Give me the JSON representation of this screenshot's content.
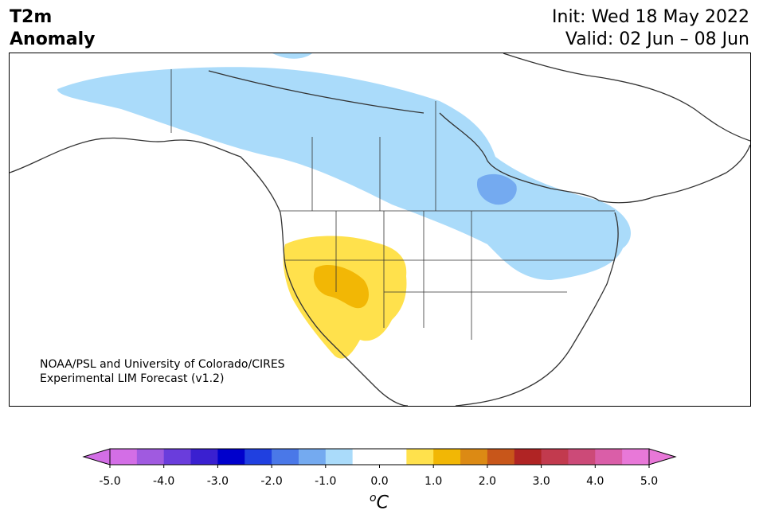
{
  "title": {
    "line1": "T2m",
    "line2": "Anomaly"
  },
  "forecast": {
    "init": "Init: Wed 18 May 2022",
    "valid": "Valid: 02 Jun – 08 Jun"
  },
  "credit": {
    "line1": "NOAA/PSL and University of Colorado/CIRES",
    "line2": "Experimental LIM Forecast (v1.2)"
  },
  "colorbar": {
    "ticks": [
      "-5.0",
      "-4.0",
      "-3.0",
      "-2.0",
      "-1.0",
      "0.0",
      "1.0",
      "2.0",
      "3.0",
      "4.0",
      "5.0"
    ],
    "unit": "C",
    "unit_prefix": "o",
    "colors": [
      "#d36ee6",
      "#a05ae0",
      "#6a3ddc",
      "#3a20d0",
      "#0000cc",
      "#2040e0",
      "#4a78e8",
      "#74aaf0",
      "#aadbfa",
      "#ffffff",
      "#ffffff",
      "#ffe14c",
      "#f2b705",
      "#dc8a14",
      "#c8561a",
      "#b02424",
      "#c23a4e",
      "#cc4a78",
      "#da5ea8",
      "#e878d8"
    ],
    "under_color": "#d36ee6",
    "over_color": "#e878d8"
  }
}
